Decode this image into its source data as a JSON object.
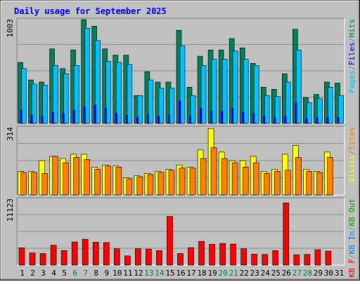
{
  "title": "Daily usage for September 2025",
  "colors": {
    "frame_bg": "#c0c0c0",
    "plot_bg": "#c0c0c0",
    "title": "#0000ff",
    "grid": "#909090",
    "hits": "#00805c",
    "files": "#0000ff",
    "pages": "#00c0ff",
    "visits": "#ffff00",
    "sites": "#ff8000",
    "kbytes": "#ff0000",
    "kb_in": "#0080ff",
    "kb_out": "#00a000",
    "weekend_label": "#008040",
    "weekday_label": "#000000"
  },
  "chart_data": [
    {
      "type": "bar",
      "name": "hits-files-pages",
      "ymax_label": "1003",
      "ylim": [
        0,
        1003
      ],
      "legend": [
        "Pages",
        "/",
        "Files",
        "/",
        "Hits"
      ],
      "categories": [
        "1",
        "2",
        "3",
        "4",
        "5",
        "6",
        "7",
        "8",
        "9",
        "10",
        "11",
        "12",
        "13",
        "14",
        "15",
        "16",
        "17",
        "18",
        "19",
        "20",
        "21",
        "22",
        "23",
        "24",
        "25",
        "26",
        "27",
        "28",
        "29",
        "30",
        "31"
      ],
      "series": [
        {
          "name": "Hits",
          "values": [
            590,
            420,
            400,
            720,
            530,
            710,
            1003,
            940,
            720,
            660,
            660,
            270,
            500,
            400,
            400,
            900,
            350,
            650,
            710,
            710,
            820,
            730,
            580,
            350,
            330,
            480,
            910,
            250,
            280,
            400,
            390
          ]
        },
        {
          "name": "Files",
          "values": [
            130,
            80,
            70,
            110,
            100,
            130,
            160,
            180,
            150,
            100,
            80,
            60,
            90,
            70,
            80,
            220,
            70,
            150,
            120,
            120,
            150,
            110,
            100,
            70,
            60,
            70,
            200,
            50,
            60,
            60,
            60
          ]
        },
        {
          "name": "Pages",
          "values": [
            530,
            380,
            370,
            560,
            480,
            560,
            920,
            800,
            600,
            590,
            570,
            270,
            420,
            340,
            340,
            750,
            270,
            560,
            620,
            620,
            700,
            620,
            560,
            270,
            260,
            400,
            710,
            200,
            240,
            350,
            270
          ]
        }
      ]
    },
    {
      "type": "bar",
      "name": "visits-sites",
      "ymax_label": "314",
      "ylim": [
        0,
        314
      ],
      "legend": [
        "Visits",
        "/",
        "Sites"
      ],
      "categories": [
        "1",
        "2",
        "3",
        "4",
        "5",
        "6",
        "7",
        "8",
        "9",
        "10",
        "11",
        "12",
        "13",
        "14",
        "15",
        "16",
        "17",
        "18",
        "19",
        "20",
        "21",
        "22",
        "23",
        "24",
        "25",
        "26",
        "27",
        "28",
        "29",
        "30",
        "31"
      ],
      "series": [
        {
          "name": "Visits",
          "values": [
            110,
            110,
            160,
            180,
            170,
            190,
            190,
            130,
            140,
            135,
            80,
            90,
            100,
            110,
            120,
            140,
            130,
            210,
            310,
            200,
            160,
            160,
            180,
            110,
            120,
            190,
            230,
            120,
            110,
            200,
            0
          ]
        },
        {
          "name": "Sites",
          "values": [
            105,
            105,
            100,
            180,
            150,
            175,
            165,
            120,
            135,
            130,
            75,
            85,
            95,
            105,
            115,
            125,
            125,
            170,
            220,
            170,
            150,
            130,
            150,
            100,
            110,
            115,
            175,
            110,
            105,
            175,
            0
          ]
        }
      ]
    },
    {
      "type": "bar",
      "name": "kbytes",
      "ymax_label": "11123",
      "ylim": [
        0,
        11123
      ],
      "legend": [
        "KB F",
        "/",
        "KB In",
        "/",
        "KB Out"
      ],
      "categories": [
        "1",
        "2",
        "3",
        "4",
        "5",
        "6",
        "7",
        "8",
        "9",
        "10",
        "11",
        "12",
        "13",
        "14",
        "15",
        "16",
        "17",
        "18",
        "19",
        "20",
        "21",
        "22",
        "23",
        "24",
        "25",
        "26",
        "27",
        "28",
        "29",
        "30",
        "31"
      ],
      "series": [
        {
          "name": "KB F",
          "values": [
            2900,
            2050,
            1950,
            3350,
            2450,
            3900,
            4350,
            3850,
            3800,
            2750,
            1550,
            2750,
            2700,
            2450,
            8200,
            1950,
            2950,
            4000,
            3500,
            3650,
            3550,
            2750,
            1850,
            1800,
            2450,
            10500,
            1750,
            1800,
            2600,
            2350,
            0
          ]
        },
        {
          "name": "KB In",
          "values": [
            0,
            0,
            0,
            0,
            0,
            0,
            0,
            0,
            0,
            0,
            0,
            0,
            0,
            0,
            0,
            0,
            0,
            0,
            0,
            0,
            0,
            0,
            0,
            0,
            0,
            0,
            0,
            0,
            0,
            0,
            0
          ]
        },
        {
          "name": "KB Out",
          "values": [
            0,
            0,
            0,
            0,
            0,
            0,
            0,
            0,
            0,
            0,
            0,
            0,
            0,
            0,
            0,
            0,
            0,
            0,
            0,
            0,
            0,
            0,
            0,
            0,
            0,
            0,
            0,
            0,
            0,
            0,
            0
          ]
        }
      ]
    }
  ],
  "x_axis": {
    "labels": [
      "1",
      "2",
      "3",
      "4",
      "5",
      "6",
      "7",
      "8",
      "9",
      "10",
      "11",
      "12",
      "13",
      "14",
      "15",
      "16",
      "17",
      "18",
      "19",
      "20",
      "21",
      "22",
      "23",
      "24",
      "25",
      "26",
      "27",
      "28",
      "29",
      "30",
      "31"
    ],
    "weekend_days": [
      "6",
      "7",
      "13",
      "14",
      "20",
      "21",
      "27",
      "28"
    ]
  }
}
